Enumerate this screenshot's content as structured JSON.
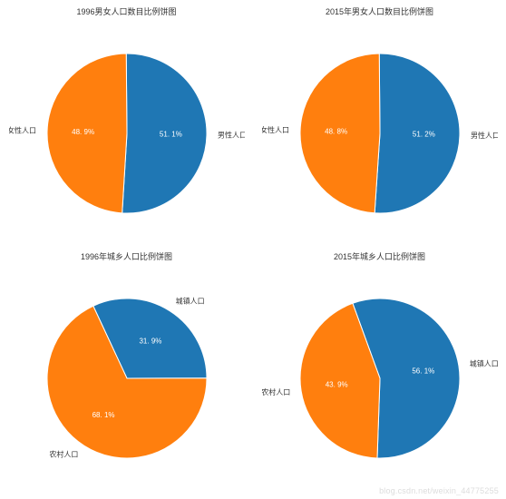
{
  "background_color": "#ffffff",
  "watermark": "blog.csdn.net/weixin_44775255",
  "title_fontsize": 9,
  "title_color": "#333333",
  "label_fontsize": 8,
  "label_color": "#333333",
  "pct_fontsize": 8,
  "pct_color": "#ffffff",
  "slice_border_color": "#ffffff",
  "slice_border_width": 1,
  "pie_radius": 88,
  "svg_size": 260,
  "panels": [
    {
      "id": "p1",
      "title": "1996男女人口数目比例饼图",
      "type": "pie",
      "start_angle": -90.5,
      "slices": [
        {
          "label": "男性人口",
          "value": 51.1,
          "pct_text": "51. 1%",
          "color": "#1f77b4"
        },
        {
          "label": "女性人口",
          "value": 48.9,
          "pct_text": "48. 9%",
          "color": "#ff7f0e"
        }
      ]
    },
    {
      "id": "p2",
      "title": "2015年男女人口数目比例饼图",
      "type": "pie",
      "start_angle": -90.5,
      "slices": [
        {
          "label": "男性人口",
          "value": 51.2,
          "pct_text": "51. 2%",
          "color": "#1f77b4"
        },
        {
          "label": "女性人口",
          "value": 48.8,
          "pct_text": "48. 8%",
          "color": "#ff7f0e"
        }
      ]
    },
    {
      "id": "p3",
      "title": "1996年城乡人口比例饼图",
      "type": "pie",
      "start_angle": -115,
      "slices": [
        {
          "label": "城镇人口",
          "value": 31.9,
          "pct_text": "31. 9%",
          "color": "#1f77b4"
        },
        {
          "label": "农村人口",
          "value": 68.1,
          "pct_text": "68. 1%",
          "color": "#ff7f0e"
        }
      ]
    },
    {
      "id": "p4",
      "title": "2015年城乡人口比例饼图",
      "type": "pie",
      "start_angle": -110,
      "slices": [
        {
          "label": "城镇人口",
          "value": 56.1,
          "pct_text": "56. 1%",
          "color": "#1f77b4"
        },
        {
          "label": "农村人口",
          "value": 43.9,
          "pct_text": "43. 9%",
          "color": "#ff7f0e"
        }
      ]
    }
  ]
}
